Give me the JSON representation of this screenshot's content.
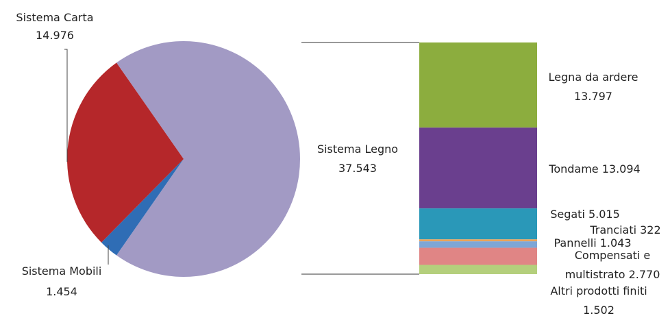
{
  "chart_data": [
    {
      "type": "pie",
      "slices": [
        {
          "name": "Sistema Legno",
          "value": 37543,
          "value_label": "37.543",
          "color": "#a29ac4"
        },
        {
          "name": "Sistema Carta",
          "value": 14976,
          "value_label": "14.976",
          "color": "#b5272a"
        },
        {
          "name": "Sistema Mobili",
          "value": 1454,
          "value_label": "1.454",
          "color": "#2f6db5"
        }
      ]
    },
    {
      "type": "bar",
      "stacked": true,
      "segments": [
        {
          "name": "Legna da ardere",
          "value": 13797,
          "value_label": "13.797",
          "color": "#8cad3e"
        },
        {
          "name": "Tondame",
          "value": 13094,
          "value_label": "13.094",
          "color": "#6a3f8e"
        },
        {
          "name": "Segati",
          "value": 5015,
          "value_label": "5.015",
          "color": "#2a98b8"
        },
        {
          "name": "Tranciati",
          "value": 322,
          "value_label": "322",
          "color": "#e9a35a"
        },
        {
          "name": "Pannelli",
          "value": 1043,
          "value_label": "1.043",
          "color": "#7ea6d6"
        },
        {
          "name": "Compensati e multistrato",
          "value": 2770,
          "value_label": "2.770",
          "color": "#e08585"
        },
        {
          "name": "Altri prodotti finiti",
          "value": 1502,
          "value_label": "1.502",
          "color": "#b4cf7c"
        }
      ]
    }
  ]
}
